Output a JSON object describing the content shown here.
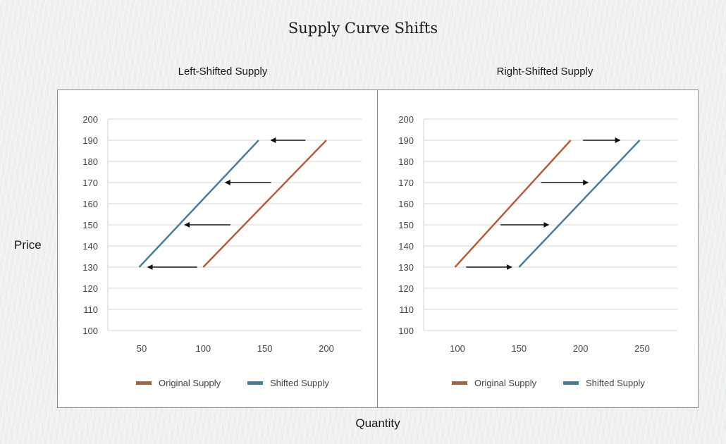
{
  "title": "Supply Curve Shifts",
  "y_axis_label": "Price",
  "x_axis_label": "Quantity",
  "colors": {
    "original": "#b0603a",
    "shifted": "#4a7d96",
    "arrow": "#111111",
    "grid": "#d6d6d6"
  },
  "legend": {
    "original": "Original Supply",
    "shifted": "Shifted Supply"
  },
  "panels": [
    {
      "subtitle": "Left-Shifted Supply"
    },
    {
      "subtitle": "Right-Shifted Supply"
    }
  ],
  "chart_data": [
    {
      "type": "line",
      "title": "Left-Shifted Supply",
      "xlabel": "Quantity",
      "ylabel": "Price",
      "ylim": [
        100,
        200
      ],
      "y_ticks": [
        100,
        110,
        120,
        130,
        140,
        150,
        160,
        170,
        180,
        190,
        200
      ],
      "x_ticks": [
        50,
        100,
        150,
        200
      ],
      "grid": true,
      "legend_position": "bottom",
      "series": [
        {
          "name": "Original Supply",
          "x": [
            100,
            200
          ],
          "y": [
            130,
            190
          ]
        },
        {
          "name": "Shifted Supply",
          "x": [
            48,
            145
          ],
          "y": [
            130,
            190
          ]
        }
      ],
      "annotations": [
        {
          "type": "arrow",
          "direction": "left",
          "y": 190,
          "x_from": 183,
          "x_to": 155
        },
        {
          "type": "arrow",
          "direction": "left",
          "y": 170,
          "x_from": 155,
          "x_to": 118
        },
        {
          "type": "arrow",
          "direction": "left",
          "y": 150,
          "x_from": 122,
          "x_to": 85
        },
        {
          "type": "arrow",
          "direction": "left",
          "y": 130,
          "x_from": 95,
          "x_to": 55
        }
      ]
    },
    {
      "type": "line",
      "title": "Right-Shifted Supply",
      "xlabel": "Quantity",
      "ylabel": "Price",
      "ylim": [
        100,
        200
      ],
      "y_ticks": [
        100,
        110,
        120,
        130,
        140,
        150,
        160,
        170,
        180,
        190,
        200
      ],
      "x_ticks": [
        100,
        150,
        200,
        250
      ],
      "grid": true,
      "legend_position": "bottom",
      "series": [
        {
          "name": "Original Supply",
          "x": [
            98,
            192
          ],
          "y": [
            130,
            190
          ]
        },
        {
          "name": "Shifted Supply",
          "x": [
            150,
            248
          ],
          "y": [
            130,
            190
          ]
        }
      ],
      "annotations": [
        {
          "type": "arrow",
          "direction": "right",
          "y": 190,
          "x_from": 202,
          "x_to": 232
        },
        {
          "type": "arrow",
          "direction": "right",
          "y": 170,
          "x_from": 168,
          "x_to": 206
        },
        {
          "type": "arrow",
          "direction": "right",
          "y": 150,
          "x_from": 135,
          "x_to": 174
        },
        {
          "type": "arrow",
          "direction": "right",
          "y": 130,
          "x_from": 107,
          "x_to": 144
        }
      ]
    }
  ]
}
